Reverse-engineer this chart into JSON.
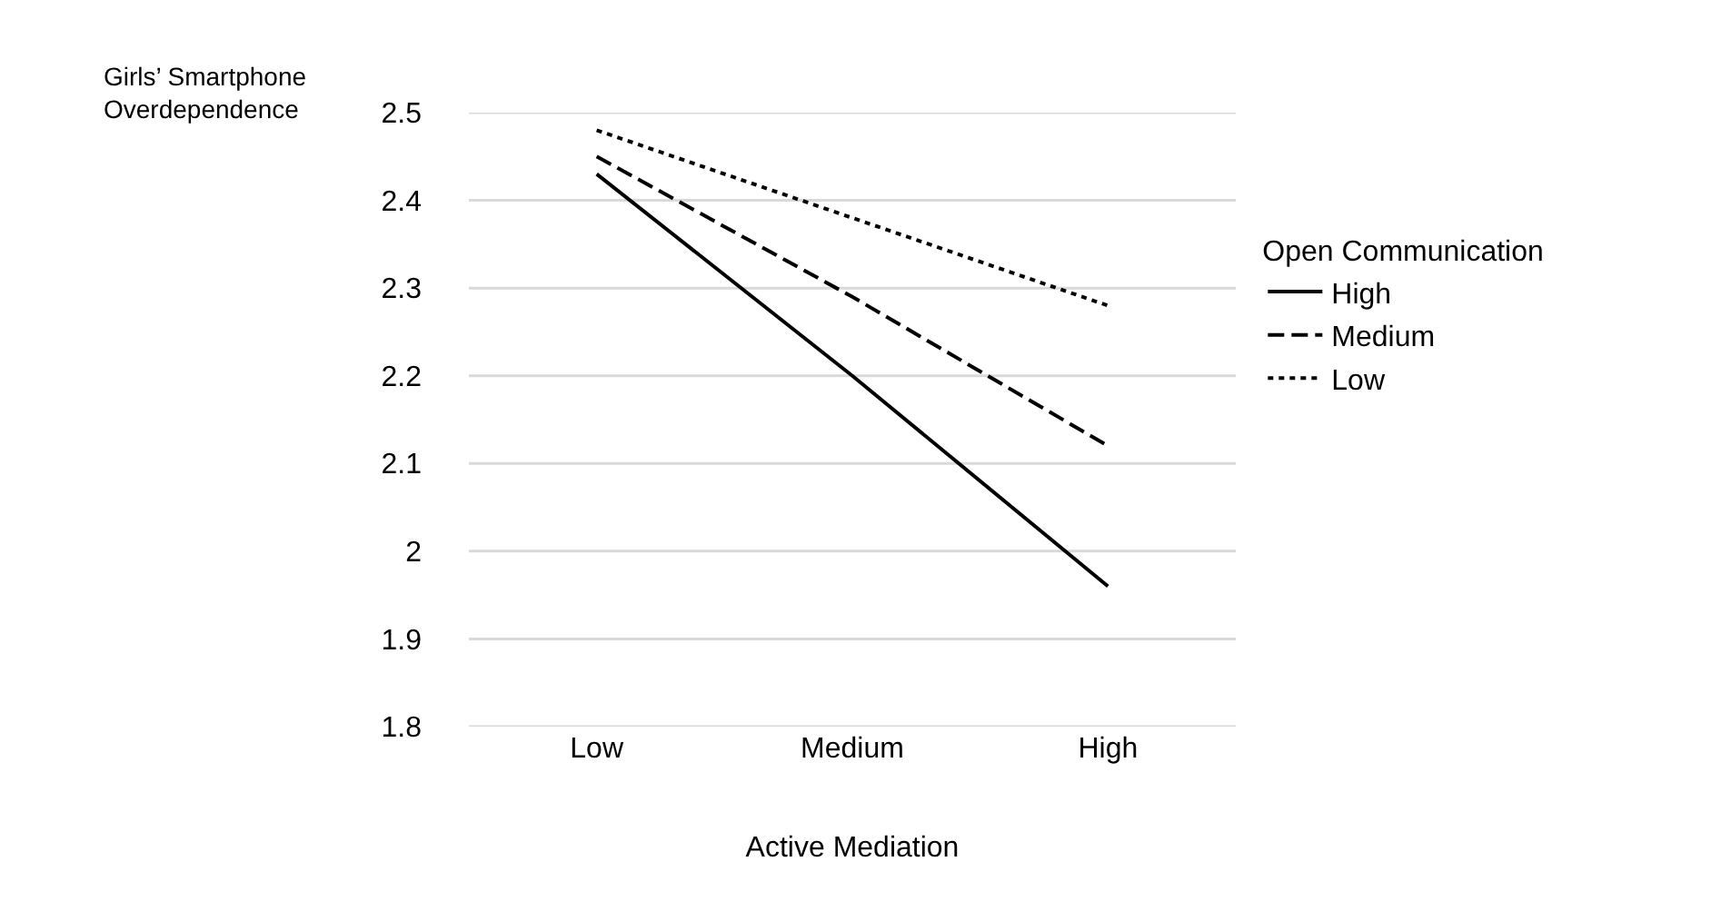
{
  "chart_data": {
    "type": "line",
    "xlabel": "Active Mediation",
    "ylabel": "Girls’ Smartphone\nOverdependence",
    "legend_title": "Open Communication",
    "categories": [
      "Low",
      "Medium",
      "High"
    ],
    "series": [
      {
        "name": "High",
        "color": "#000000",
        "line_style": "solid",
        "values": [
          2.43,
          2.2,
          1.96
        ]
      },
      {
        "name": "Medium",
        "color": "#000000",
        "line_style": "dashed",
        "values": [
          2.45,
          2.29,
          2.12
        ]
      },
      {
        "name": "Low",
        "color": "#000000",
        "line_style": "dotted",
        "values": [
          2.48,
          2.38,
          2.28
        ]
      }
    ],
    "ylim": [
      1.8,
      2.5
    ],
    "yticks": [
      1.8,
      1.9,
      2,
      2.1,
      2.2,
      2.3,
      2.4,
      2.5
    ],
    "grid": "y",
    "legend": "right",
    "marker": "none"
  }
}
